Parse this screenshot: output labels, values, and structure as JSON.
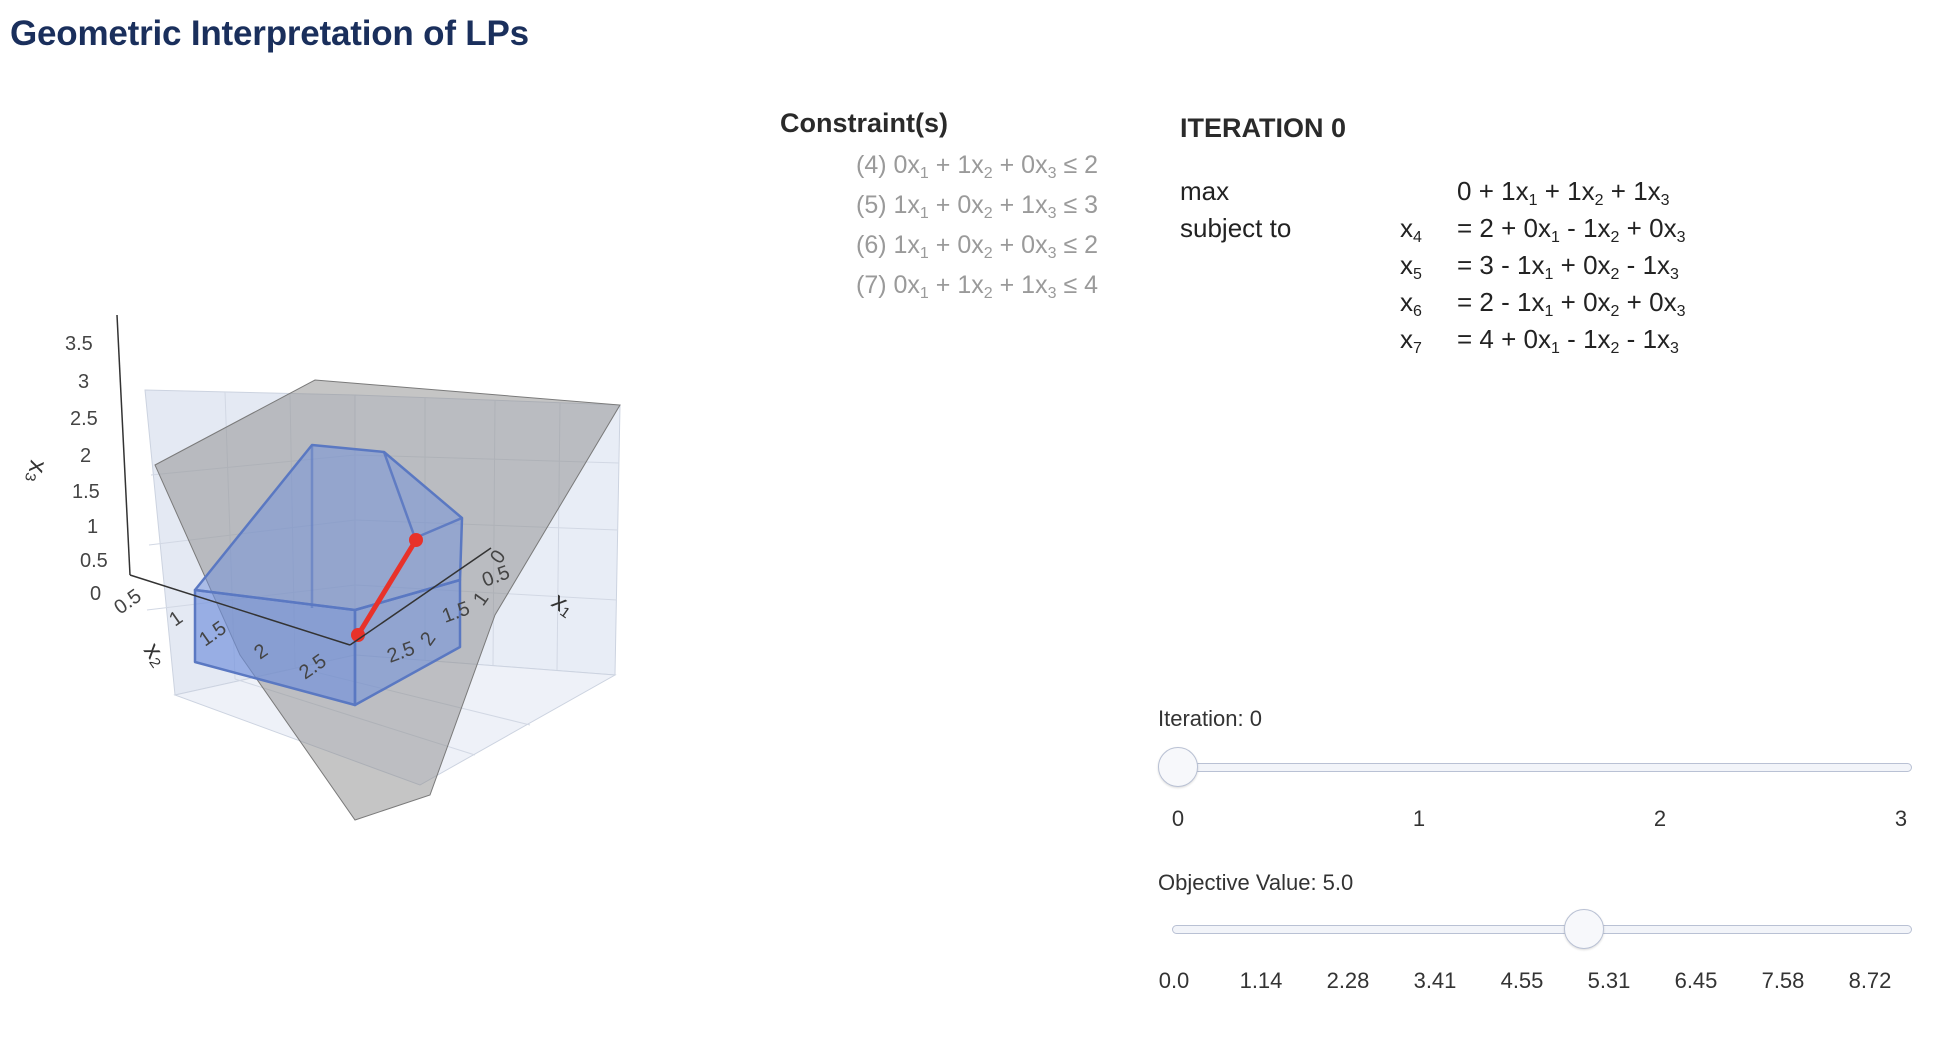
{
  "title": "Geometric Interpretation of LPs",
  "plot": {
    "xlabel": "x₁",
    "ylabel": "x₂",
    "zlabel": "x₃",
    "x_ticks": [
      "0",
      "0.5",
      "1",
      "1.5",
      "2",
      "2.5"
    ],
    "y_ticks": [
      "0.5",
      "1",
      "1.5",
      "2",
      "2.5"
    ],
    "z_ticks": [
      "0",
      "0.5",
      "1",
      "1.5",
      "2",
      "2.5",
      "3",
      "3.5"
    ],
    "colors": {
      "feasible_region": "#6f8fdc",
      "objective_plane": "#9a9a9a",
      "path": "#e8322a"
    }
  },
  "constraints": {
    "heading": "Constraint(s)",
    "items": [
      {
        "id": "(4)",
        "text": "(4) 0x₁ + 1x₂ + 0x₃ ≤ 2"
      },
      {
        "id": "(5)",
        "text": "(5) 1x₁ + 0x₂ + 1x₃ ≤ 3"
      },
      {
        "id": "(6)",
        "text": "(6) 1x₁ + 0x₂ + 0x₃ ≤ 2"
      },
      {
        "id": "(7)",
        "text": "(7) 0x₁ + 1x₂ + 1x₃ ≤ 4"
      }
    ]
  },
  "iteration": {
    "heading": "ITERATION 0",
    "max_label": "max",
    "subject_label": "subject to",
    "objective": "0 + 1x₁ + 1x₂ + 1x₃",
    "rows": [
      {
        "var": "x₄",
        "expr": "= 2 + 0x₁ - 1x₂ + 0x₃"
      },
      {
        "var": "x₅",
        "expr": "= 3 - 1x₁ + 0x₂ - 1x₃"
      },
      {
        "var": "x₆",
        "expr": "= 2 - 1x₁ + 0x₂ + 0x₃"
      },
      {
        "var": "x₇",
        "expr": "= 4 + 0x₁ - 1x₂ - 1x₃"
      }
    ]
  },
  "iteration_slider": {
    "label": "Iteration: 0",
    "value": 0,
    "min": 0,
    "max": 3,
    "ticks": [
      "0",
      "1",
      "2",
      "3"
    ]
  },
  "objective_slider": {
    "label": "Objective Value: 5.0",
    "value": 5.0,
    "ticks": [
      "0.0",
      "1.14",
      "2.28",
      "3.41",
      "4.55",
      "5.31",
      "6.45",
      "7.58",
      "8.72"
    ]
  }
}
